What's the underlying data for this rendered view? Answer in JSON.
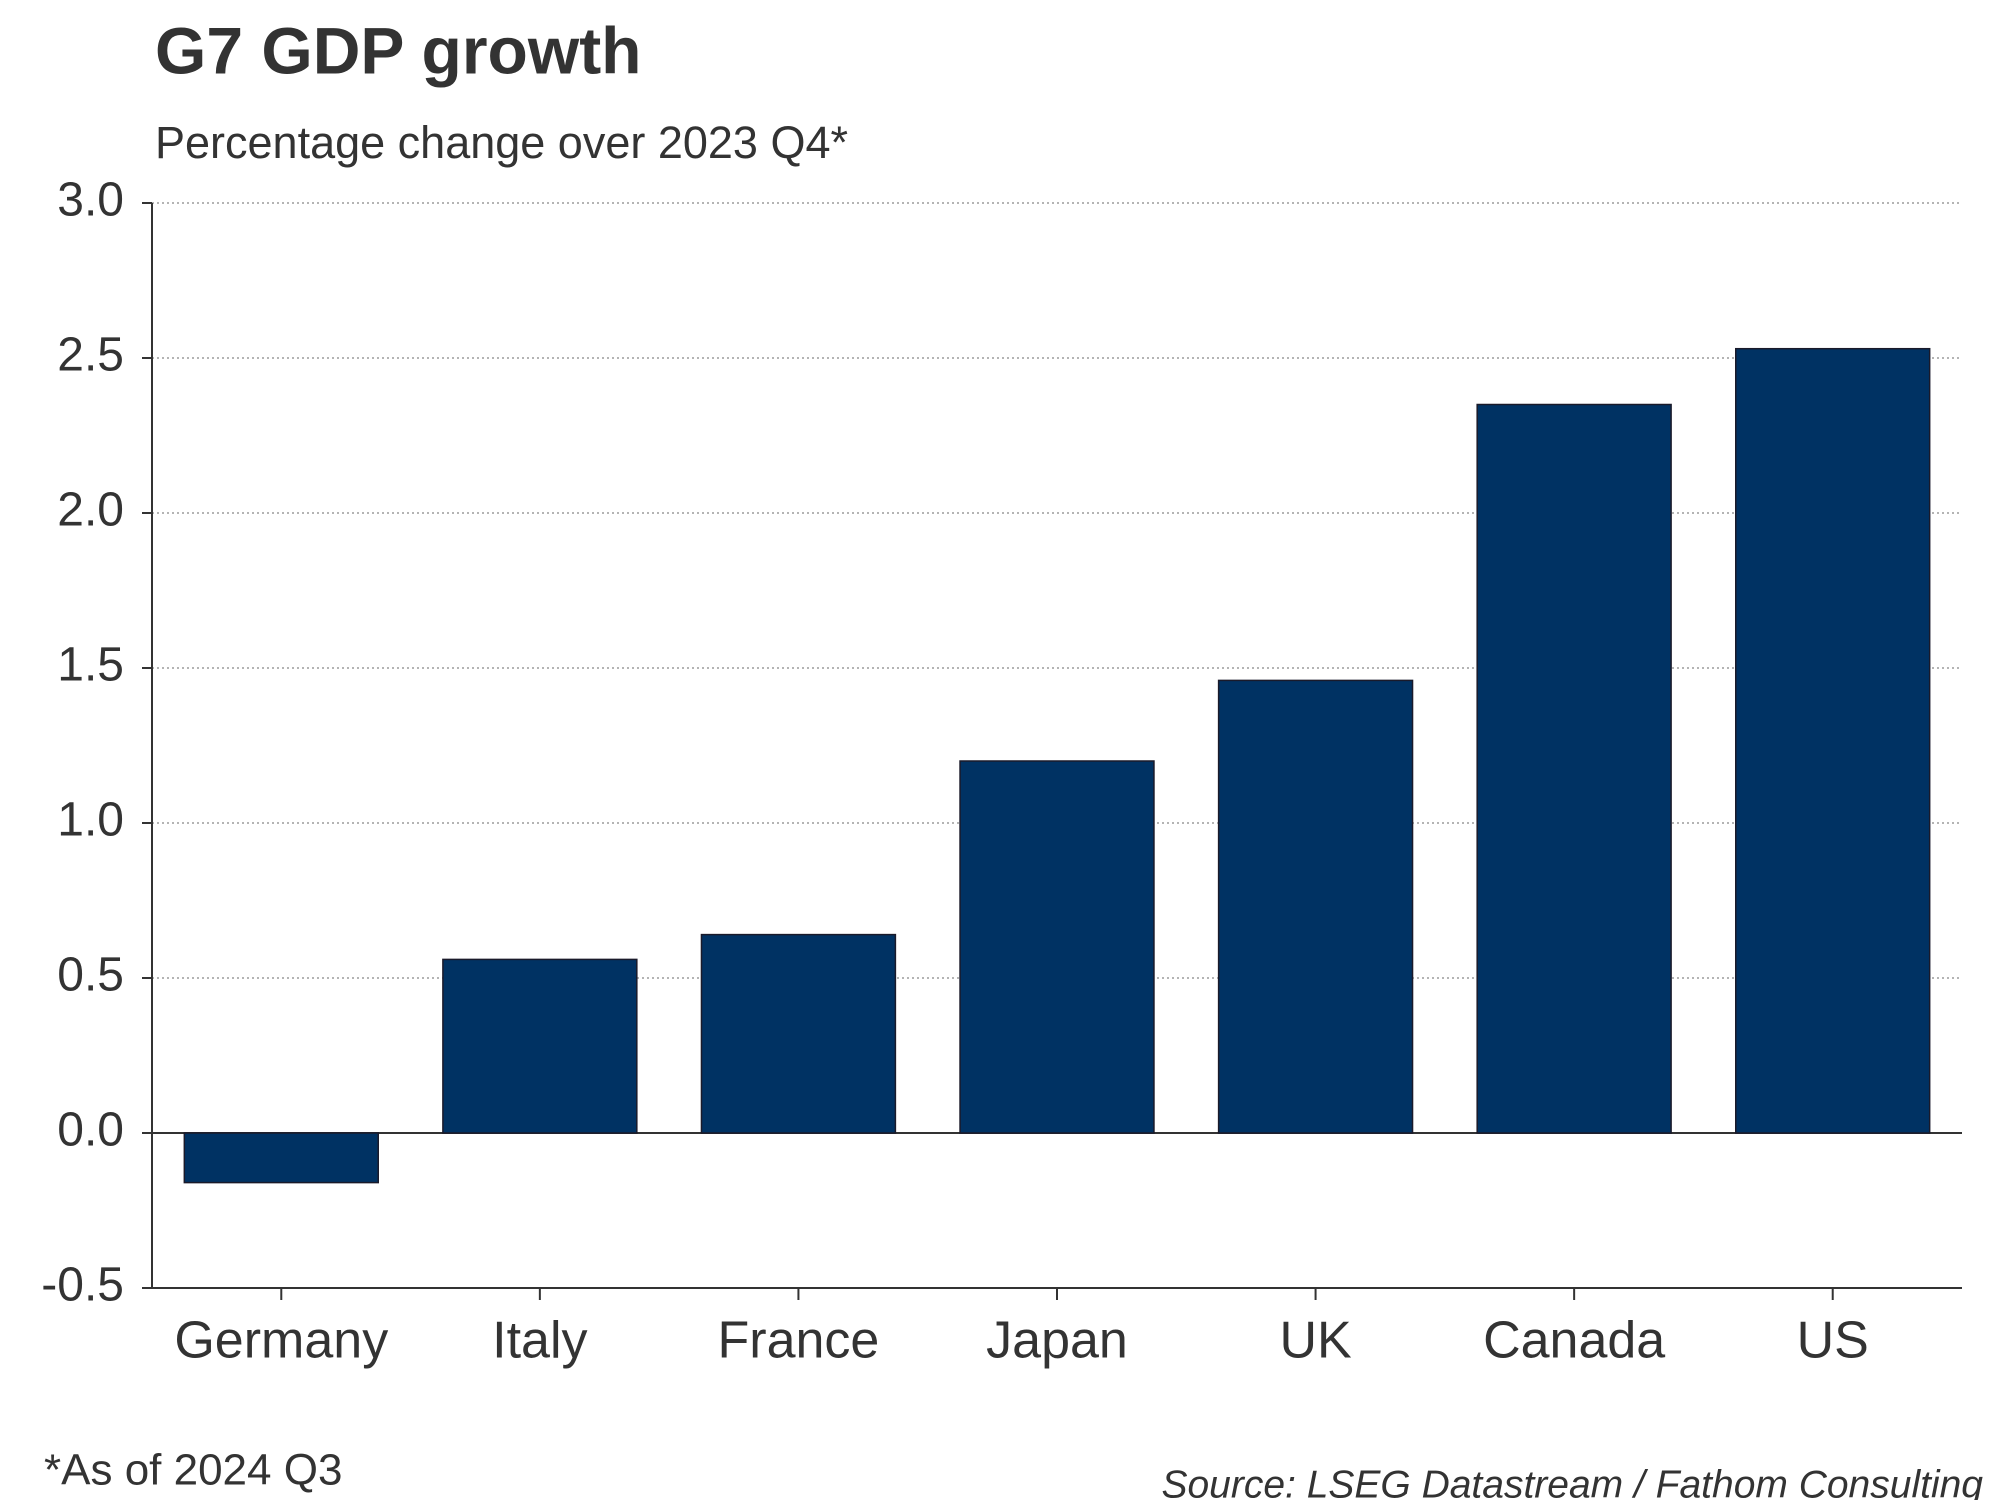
{
  "chart_data": {
    "type": "bar",
    "title": "G7 GDP growth",
    "subtitle": "Percentage change over 2023 Q4*",
    "categories": [
      "Germany",
      "Italy",
      "France",
      "Japan",
      "UK",
      "Canada",
      "US"
    ],
    "values": [
      -0.16,
      0.56,
      0.64,
      1.2,
      1.46,
      2.35,
      2.53
    ],
    "color": "#003263",
    "ylim": [
      -0.5,
      3.0
    ],
    "yticks": [
      {
        "value": -0.5,
        "label": "-0.5"
      },
      {
        "value": 0,
        "label": "0.0"
      },
      0.5,
      {
        "value": 1,
        "label": "1.0"
      },
      1.5,
      {
        "value": 2,
        "label": "2.0"
      },
      2.5,
      {
        "value": 3,
        "label": "3.0"
      }
    ],
    "grid": true,
    "footnote": "*As of 2024 Q3",
    "source": "Source: LSEG Datastream / Fathom Consulting"
  }
}
